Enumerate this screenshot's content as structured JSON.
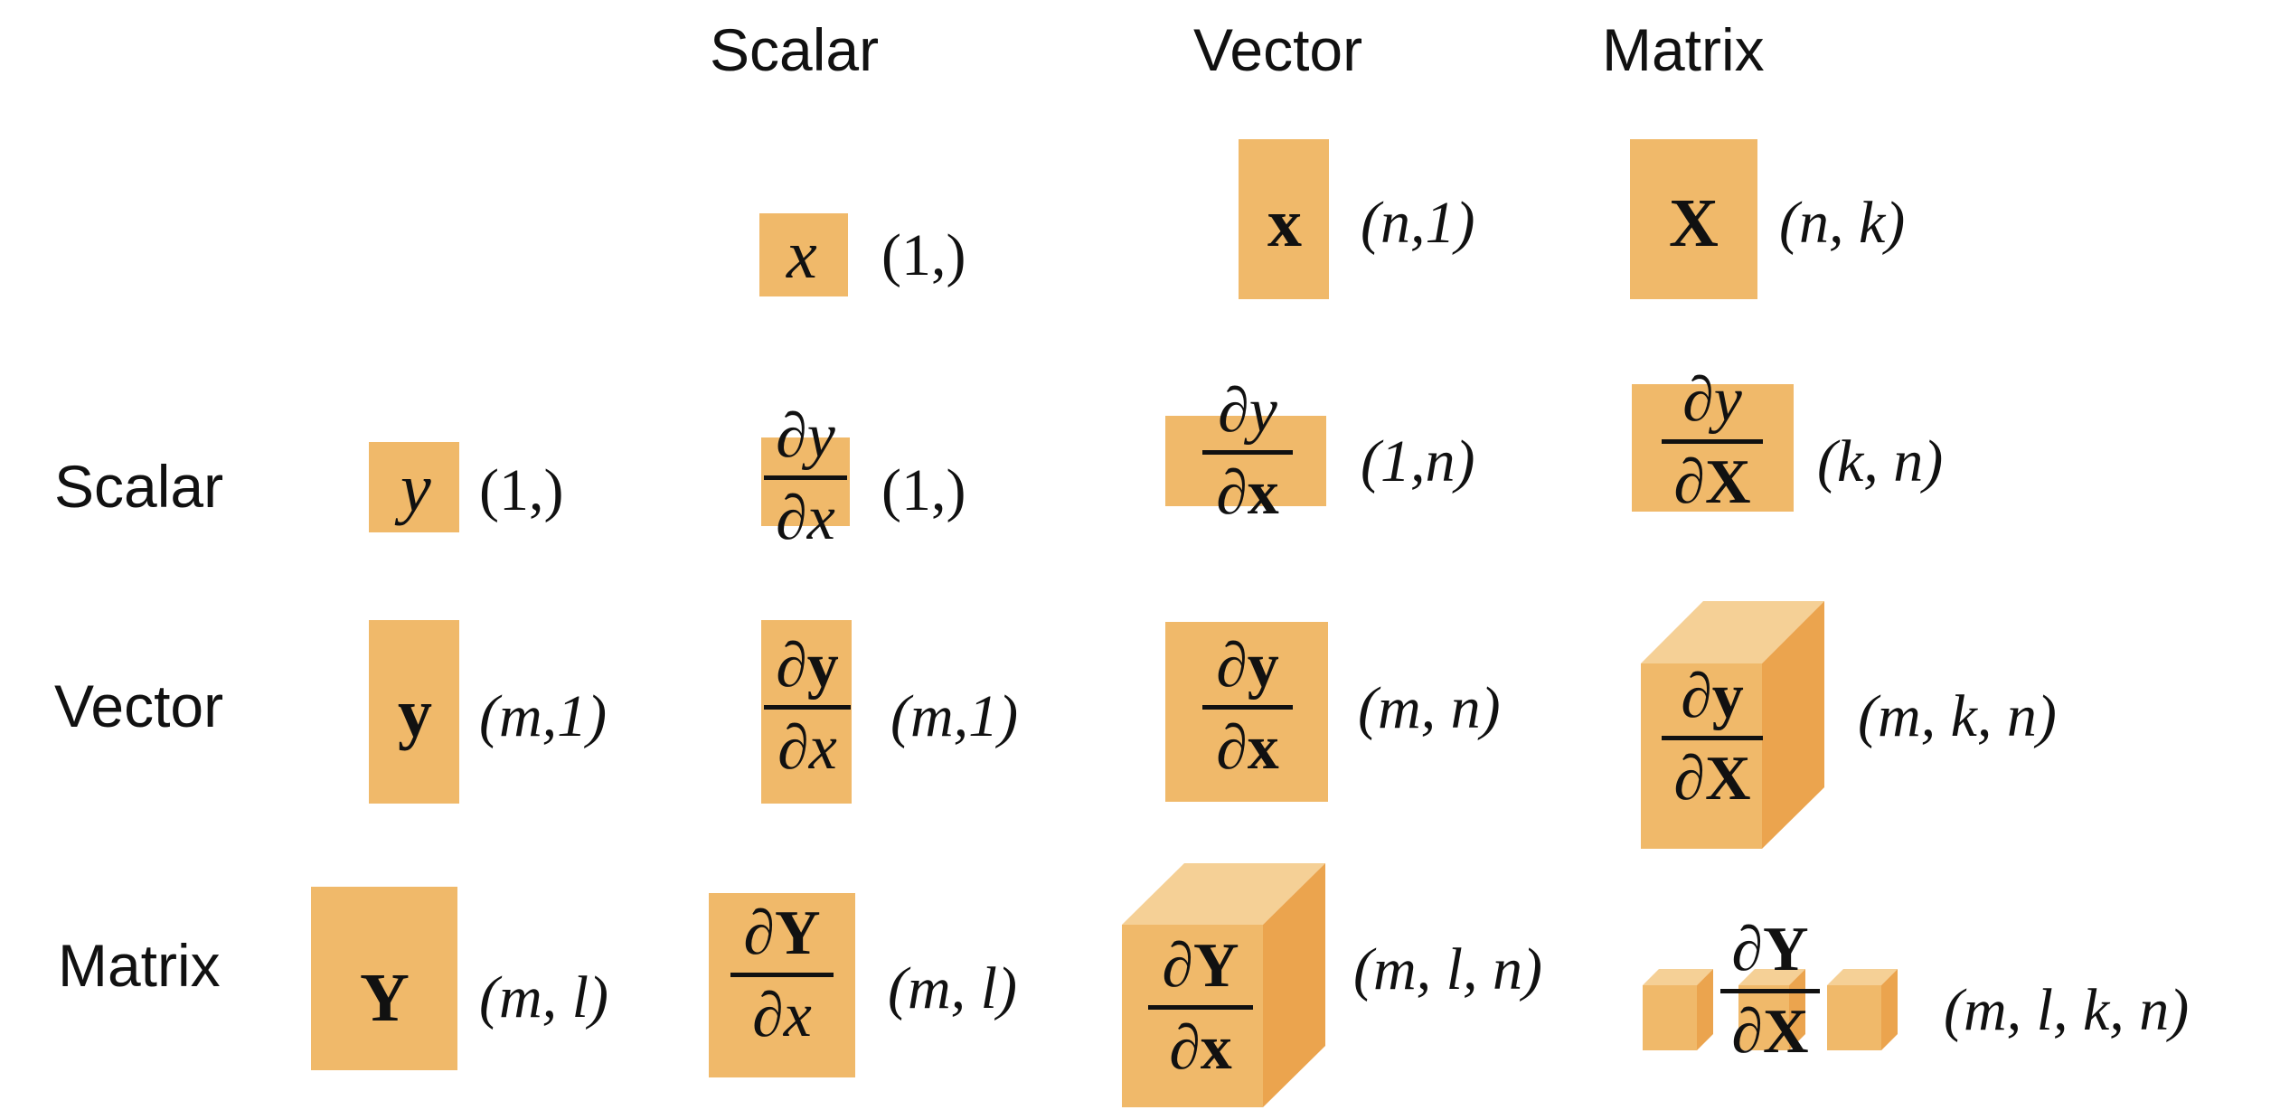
{
  "headers": {
    "columns": [
      "Scalar",
      "Vector",
      "Matrix"
    ],
    "rows": [
      "Scalar",
      "Vector",
      "Matrix"
    ]
  },
  "inputs": {
    "scalar": {
      "symbol": "x",
      "shape": "(1,)"
    },
    "vector": {
      "symbol": "x",
      "shape": "(n,1)"
    },
    "matrix": {
      "symbol": "X",
      "shape": "(n, k)"
    }
  },
  "outputs": {
    "scalar": {
      "symbol": "y",
      "shape": "(1,)"
    },
    "vector": {
      "symbol": "y",
      "shape": "(m,1)"
    },
    "matrix": {
      "symbol": "Y",
      "shape": "(m, l)"
    }
  },
  "derivatives": {
    "d": "∂",
    "scalar_scalar": {
      "num": "y",
      "den": "x",
      "shape": "(1,)"
    },
    "scalar_vector": {
      "num": "y",
      "den": "x",
      "shape": "(1,n)"
    },
    "scalar_matrix": {
      "num": "y",
      "den": "X",
      "shape": "(k, n)"
    },
    "vector_scalar": {
      "num": "y",
      "den": "x",
      "shape": "(m,1)"
    },
    "vector_vector": {
      "num": "y",
      "den": "x",
      "shape": "(m, n)"
    },
    "vector_matrix": {
      "num": "y",
      "den": "X",
      "shape": "(m, k, n)"
    },
    "matrix_scalar": {
      "num": "Y",
      "den": "x",
      "shape": "(m, l)"
    },
    "matrix_vector": {
      "num": "Y",
      "den": "x",
      "shape": "(m, l, n)"
    },
    "matrix_matrix": {
      "num": "Y",
      "den": "X",
      "shape": "(m, l, k, n)"
    }
  },
  "colors": {
    "box_fill": "#f0b96a",
    "box_top": "#f5d096",
    "box_side": "#eba44e",
    "text": "#111111"
  }
}
